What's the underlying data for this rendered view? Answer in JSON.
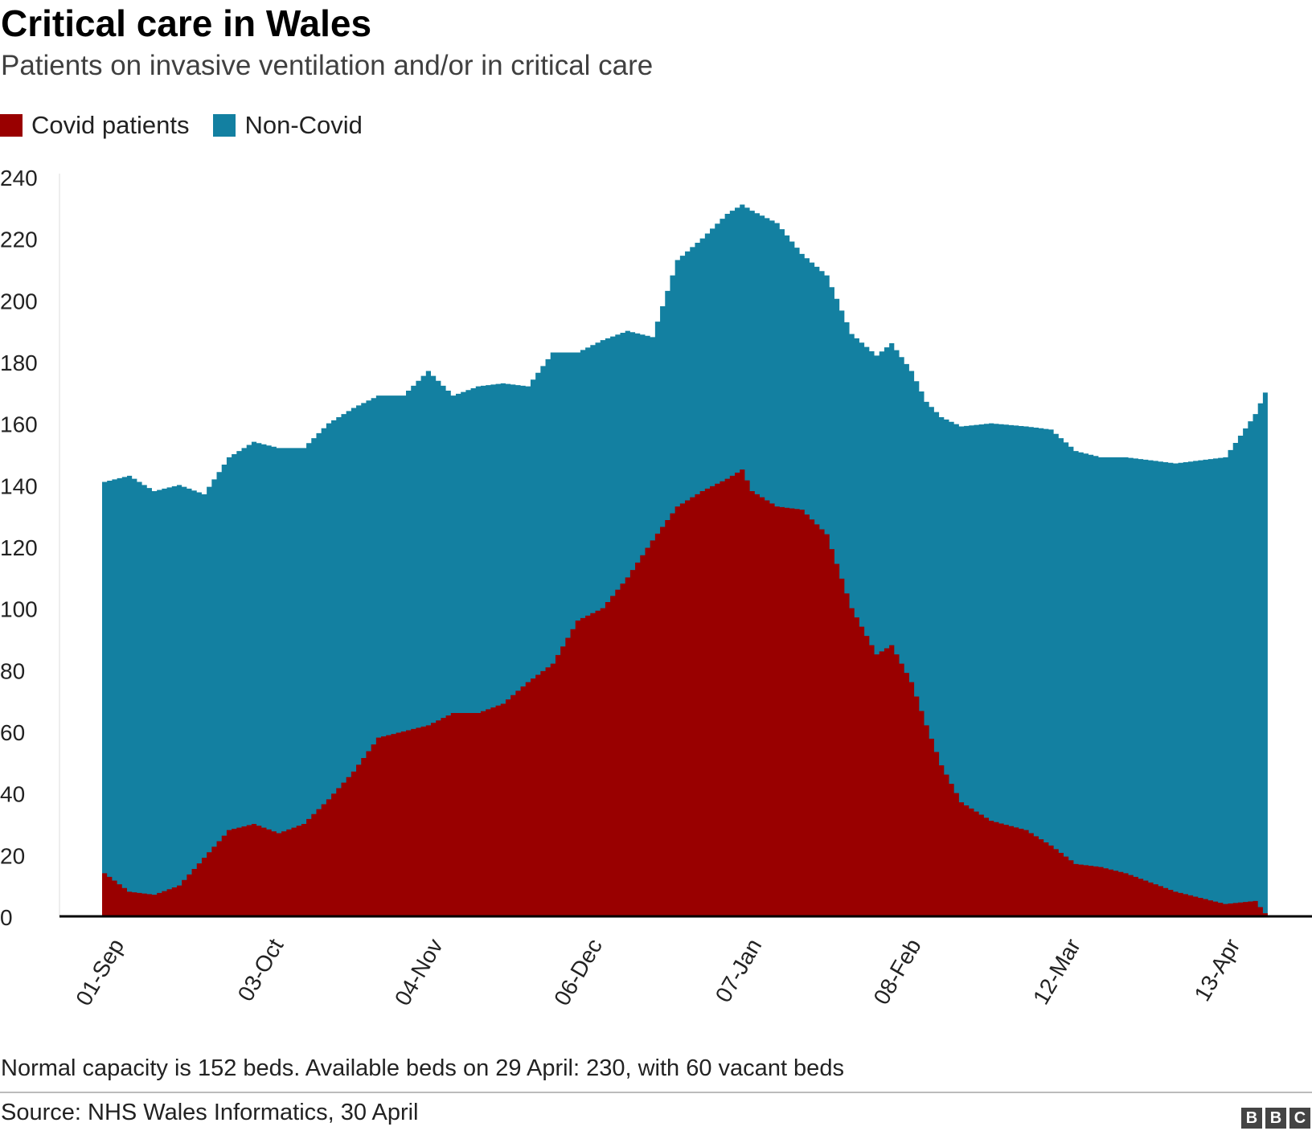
{
  "title": "Critical care in Wales",
  "subtitle": "Patients on invasive ventilation and/or in critical care",
  "note": "Normal capacity is 152 beds. Available beds on 29 April: 230, with 60 vacant beds",
  "source": "Source: NHS Wales Informatics, 30 April",
  "logo_letters": [
    "B",
    "B",
    "C"
  ],
  "colors": {
    "covid": "#990000",
    "non_covid": "#1380a1",
    "axis": "#000000",
    "text": "#222222"
  },
  "legend": [
    {
      "label": "Covid patients",
      "color": "#990000"
    },
    {
      "label": "Non-Covid",
      "color": "#1380a1"
    }
  ],
  "chart_data": {
    "type": "area",
    "stacked": true,
    "grid": false,
    "legend_position": "top-left",
    "ylim": [
      0,
      240
    ],
    "y_ticks": [
      0,
      20,
      40,
      60,
      80,
      100,
      120,
      140,
      160,
      180,
      200,
      220,
      240
    ],
    "x_tick_labels": [
      "01-Sep",
      "03-Oct",
      "04-Nov",
      "06-Dec",
      "07-Jan",
      "08-Feb",
      "12-Mar",
      "13-Apr"
    ],
    "x_tick_days": [
      0,
      32,
      64,
      96,
      128,
      160,
      192,
      224
    ],
    "x_day_label": "01-Sep",
    "x_end_day": 240,
    "series": [
      {
        "name": "Covid patients",
        "points": [
          [
            0,
            14
          ],
          [
            5,
            8
          ],
          [
            10,
            7
          ],
          [
            15,
            10
          ],
          [
            20,
            19
          ],
          [
            25,
            28
          ],
          [
            30,
            30
          ],
          [
            35,
            27
          ],
          [
            40,
            30
          ],
          [
            45,
            38
          ],
          [
            50,
            47
          ],
          [
            55,
            58
          ],
          [
            60,
            60
          ],
          [
            65,
            62
          ],
          [
            70,
            66
          ],
          [
            75,
            66
          ],
          [
            80,
            69
          ],
          [
            85,
            76
          ],
          [
            90,
            82
          ],
          [
            95,
            96
          ],
          [
            100,
            100
          ],
          [
            105,
            110
          ],
          [
            110,
            122
          ],
          [
            115,
            133
          ],
          [
            120,
            138
          ],
          [
            125,
            142
          ],
          [
            128,
            145
          ],
          [
            130,
            138
          ],
          [
            135,
            133
          ],
          [
            140,
            132
          ],
          [
            145,
            124
          ],
          [
            150,
            100
          ],
          [
            155,
            85
          ],
          [
            158,
            88
          ],
          [
            162,
            76
          ],
          [
            165,
            62
          ],
          [
            168,
            49
          ],
          [
            172,
            37
          ],
          [
            178,
            31
          ],
          [
            185,
            28
          ],
          [
            190,
            23
          ],
          [
            195,
            17
          ],
          [
            200,
            16
          ],
          [
            205,
            14
          ],
          [
            210,
            11
          ],
          [
            215,
            8
          ],
          [
            220,
            6
          ],
          [
            225,
            4
          ],
          [
            231,
            5
          ],
          [
            233,
            1
          ]
        ]
      },
      {
        "name": "Non-Covid",
        "points": [
          [
            0,
            127
          ],
          [
            5,
            135
          ],
          [
            10,
            131
          ],
          [
            15,
            130
          ],
          [
            20,
            118
          ],
          [
            25,
            121
          ],
          [
            30,
            124
          ],
          [
            35,
            125
          ],
          [
            40,
            122
          ],
          [
            45,
            122
          ],
          [
            50,
            118
          ],
          [
            55,
            111
          ],
          [
            60,
            109
          ],
          [
            65,
            115
          ],
          [
            70,
            103
          ],
          [
            75,
            106
          ],
          [
            80,
            104
          ],
          [
            85,
            96
          ],
          [
            90,
            101
          ],
          [
            95,
            87
          ],
          [
            100,
            87
          ],
          [
            105,
            80
          ],
          [
            110,
            66
          ],
          [
            115,
            80
          ],
          [
            120,
            82
          ],
          [
            125,
            86
          ],
          [
            128,
            86
          ],
          [
            130,
            91
          ],
          [
            135,
            92
          ],
          [
            140,
            83
          ],
          [
            145,
            84
          ],
          [
            150,
            89
          ],
          [
            155,
            97
          ],
          [
            158,
            98
          ],
          [
            162,
            101
          ],
          [
            165,
            105
          ],
          [
            168,
            113
          ],
          [
            172,
            122
          ],
          [
            178,
            129
          ],
          [
            185,
            131
          ],
          [
            190,
            135
          ],
          [
            195,
            134
          ],
          [
            200,
            133
          ],
          [
            205,
            135
          ],
          [
            210,
            137
          ],
          [
            215,
            139
          ],
          [
            220,
            142
          ],
          [
            225,
            145
          ],
          [
            231,
            158
          ],
          [
            233,
            169
          ]
        ]
      }
    ]
  }
}
